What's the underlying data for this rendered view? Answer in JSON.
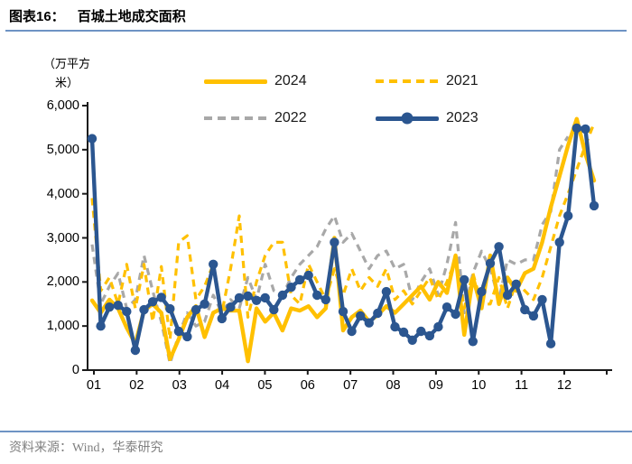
{
  "header": {
    "figure_label": "图表16：",
    "title": "百城土地成交面积"
  },
  "footer": {
    "source": "资料来源：Wind，华泰研究"
  },
  "colors": {
    "blue_2023": "#2B5690",
    "gold": "#FFC000",
    "gray_2022": "#A8A8A8",
    "divider_blue": "#6E93C4",
    "axis": "#1A1A1A",
    "source_gray": "#808080"
  },
  "chart_data": {
    "type": "line",
    "title": "百城土地成交面积",
    "unit_line1": "（万平方",
    "unit_line2": "米）",
    "xlabel": "",
    "ylabel": "万平方米",
    "ylim": [
      0,
      6000
    ],
    "y_ticks": [
      0,
      1000,
      2000,
      3000,
      4000,
      5000,
      6000
    ],
    "y_tick_labels": [
      "0",
      "1,000",
      "2,000",
      "3,000",
      "4,000",
      "5,000",
      "6,000"
    ],
    "x_tick_labels": [
      "01",
      "02",
      "03",
      "04",
      "05",
      "06",
      "07",
      "08",
      "09",
      "10",
      "11",
      "12"
    ],
    "x_axis_note": "weekly data, months 01-12",
    "grid": false,
    "legend_position": "top",
    "legend": [
      {
        "label": "2024",
        "style": "solid",
        "color": "#FFC000"
      },
      {
        "label": "2021",
        "style": "dashed",
        "color": "#FFC000"
      },
      {
        "label": "2022",
        "style": "dashed",
        "color": "#A8A8A8"
      },
      {
        "label": "2023",
        "style": "solid-marker",
        "color": "#2B5690"
      }
    ],
    "series": [
      {
        "name": "2022",
        "style": "dashed",
        "color": "#A8A8A8",
        "values": [
          2850,
          1500,
          1900,
          2200,
          1400,
          1600,
          2600,
          1800,
          1100,
          150,
          800,
          1300,
          1000,
          1100,
          1700,
          1300,
          1600,
          1400,
          2100,
          1600,
          2400,
          1800,
          1700,
          2100,
          2400,
          2600,
          2800,
          3200,
          3500,
          2900,
          3100,
          2700,
          2300,
          2600,
          2700,
          2300,
          2400,
          1600,
          2000,
          2300,
          1700,
          2400,
          3350,
          1300,
          2200,
          2700,
          2300,
          1600,
          2500,
          2400,
          2500,
          2500,
          3300,
          3600,
          5000,
          5300,
          null,
          null,
          null
        ]
      },
      {
        "name": "2021",
        "style": "dashed",
        "color": "#FFC000",
        "values": [
          3900,
          1800,
          2100,
          1500,
          2400,
          1400,
          2400,
          1100,
          2350,
          700,
          2900,
          3050,
          1600,
          1900,
          2400,
          1300,
          2300,
          3500,
          1200,
          2000,
          2600,
          2900,
          2900,
          1700,
          1500,
          2400,
          2000,
          1600,
          2300,
          1700,
          2300,
          1800,
          2100,
          1900,
          2300,
          1600,
          1800,
          1500,
          1800,
          2100,
          1600,
          2000,
          2500,
          1400,
          2200,
          1500,
          1500,
          2100,
          1400,
          2000,
          1800,
          1600,
          2100,
          2800,
          3500,
          4000,
          4550,
          5100,
          5600
        ]
      },
      {
        "name": "2024",
        "style": "solid",
        "color": "#FFC000",
        "values": [
          1580,
          1300,
          1600,
          1400,
          960,
          600,
          1350,
          1500,
          1300,
          250,
          700,
          1200,
          1450,
          750,
          1300,
          1400,
          1350,
          1350,
          200,
          1400,
          1100,
          1300,
          900,
          1400,
          1350,
          1450,
          1200,
          1400,
          3000,
          900,
          1200,
          1350,
          1100,
          1250,
          1450,
          1300,
          1500,
          1700,
          1900,
          1600,
          2000,
          1750,
          2600,
          800,
          2100,
          1400,
          2600,
          1500,
          2100,
          1800,
          2200,
          2300,
          2900,
          3700,
          4400,
          5100,
          5700,
          4900,
          4300
        ]
      },
      {
        "name": "2023",
        "style": "solid-marker",
        "color": "#2B5690",
        "values": [
          5250,
          1000,
          1430,
          1470,
          1330,
          450,
          1370,
          1550,
          1650,
          1390,
          880,
          760,
          1370,
          1500,
          2400,
          1170,
          1430,
          1640,
          1680,
          1580,
          1640,
          1370,
          1700,
          1880,
          2050,
          2150,
          1700,
          1600,
          2900,
          1330,
          880,
          1230,
          1070,
          1290,
          1780,
          980,
          860,
          680,
          880,
          780,
          980,
          1430,
          1270,
          2050,
          650,
          1780,
          2420,
          2800,
          1700,
          1950,
          1370,
          1230,
          1600,
          600,
          2900,
          3500,
          5490,
          5470,
          3730
        ]
      }
    ]
  }
}
